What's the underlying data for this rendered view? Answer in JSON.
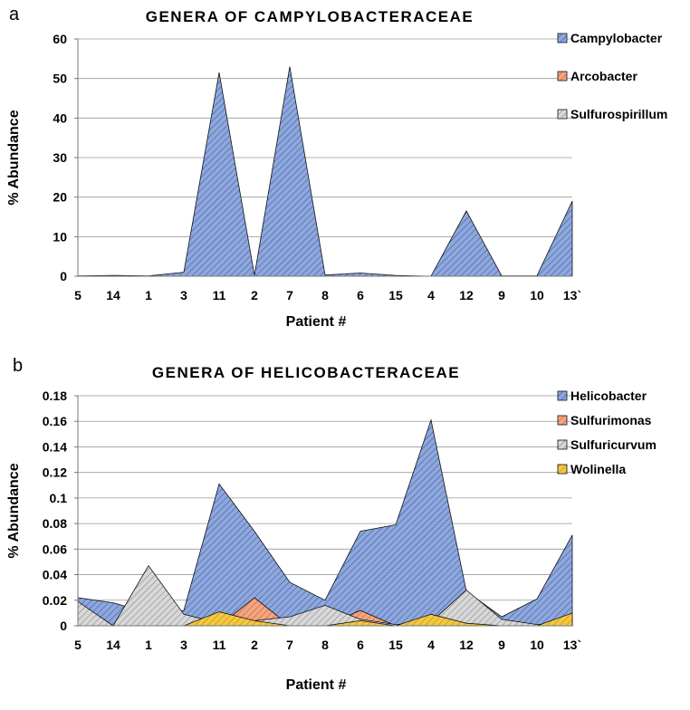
{
  "chart_data": [
    {
      "panel_label": "a",
      "type": "area",
      "title": "GENERA OF CAMPYLOBACTERACEAE",
      "xlabel": "Patient #",
      "ylabel": "% Abundance",
      "categories": [
        "5",
        "14",
        "1",
        "3",
        "11",
        "2",
        "7",
        "8",
        "6",
        "15",
        "4",
        "12",
        "9",
        "10",
        "13`"
      ],
      "ylim": [
        0,
        60
      ],
      "yticks": [
        "0",
        "10",
        "20",
        "30",
        "40",
        "50",
        "60"
      ],
      "grid": true,
      "legend_position": "right",
      "series": [
        {
          "name": "Campylobacter",
          "color": "#8FA8DC",
          "values": [
            0.1,
            0.2,
            0.1,
            1,
            51.5,
            0.2,
            53,
            0.3,
            0.8,
            0.2,
            0,
            16.5,
            0.1,
            0.1,
            19
          ]
        },
        {
          "name": "Arcobacter",
          "color": "#F4A582",
          "values": [
            0,
            0,
            0,
            0,
            0,
            0,
            0,
            0,
            0,
            0,
            0,
            0,
            0,
            0,
            0
          ]
        },
        {
          "name": "Sulfurospirillum",
          "color": "#C8C8C8",
          "values": [
            0,
            0,
            0,
            0,
            0,
            0,
            0,
            0,
            0,
            0,
            0,
            0,
            0,
            0,
            0
          ]
        }
      ]
    },
    {
      "panel_label": "b",
      "type": "area",
      "title": "GENERA OF HELICOBACTERACEAE",
      "xlabel": "Patient #",
      "ylabel": "% Abundance",
      "categories": [
        "5",
        "14",
        "1",
        "3",
        "11",
        "2",
        "7",
        "8",
        "6",
        "15",
        "4",
        "12",
        "9",
        "10",
        "13`"
      ],
      "ylim": [
        0,
        0.18
      ],
      "yticks": [
        "0",
        "0.02",
        "0.04",
        "0.06",
        "0.08",
        "0.1",
        "0.12",
        "0.14",
        "0.16",
        "0.18"
      ],
      "grid": true,
      "legend_position": "right",
      "series": [
        {
          "name": "Helicobacter",
          "color": "#8FA8DC",
          "values": [
            0.022,
            0.018,
            0.01,
            0.012,
            0.111,
            0.074,
            0.034,
            0.02,
            0.074,
            0.079,
            0.161,
            0.027,
            0.007,
            0.021,
            0.071
          ]
        },
        {
          "name": "Sulfurimonas",
          "color": "#F4A582",
          "values": [
            0,
            0,
            0,
            0,
            0,
            0.022,
            0,
            0,
            0.012,
            0,
            0,
            0,
            0,
            0,
            0
          ]
        },
        {
          "name": "Sulfuricurvum",
          "color": "#C8C8C8",
          "values": [
            0.019,
            0,
            0.047,
            0.009,
            0.002,
            0.004,
            0.007,
            0.016,
            0.005,
            0.001,
            0.003,
            0.028,
            0.005,
            0.001,
            0.003
          ]
        },
        {
          "name": "Wolinella",
          "color": "#F5C842",
          "values": [
            0,
            0,
            0,
            0,
            0.011,
            0.004,
            0,
            0,
            0.004,
            0,
            0.009,
            0.002,
            0,
            0,
            0.01
          ]
        }
      ]
    }
  ]
}
